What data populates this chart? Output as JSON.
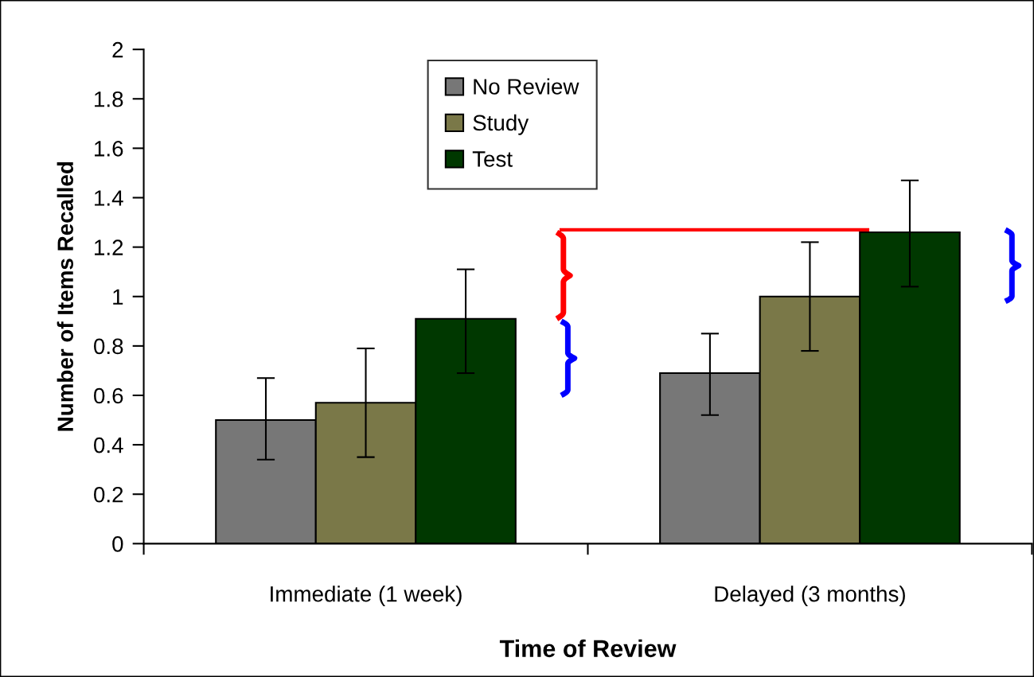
{
  "chart_data": {
    "type": "bar",
    "xlabel": "Time of Review",
    "ylabel": "Number of Items Recalled",
    "categories": [
      "Immediate (1 week)",
      "Delayed (3 months)"
    ],
    "series": [
      {
        "name": "No Review",
        "color": "#777777",
        "values": [
          0.5,
          0.69
        ],
        "errors": [
          [
            0.34,
            0.67
          ],
          [
            0.52,
            0.85
          ]
        ]
      },
      {
        "name": "Study",
        "color": "#7a7848",
        "values": [
          0.57,
          1.0
        ],
        "errors": [
          [
            0.35,
            0.79
          ],
          [
            0.78,
            1.22
          ]
        ]
      },
      {
        "name": "Test",
        "color": "#003800",
        "values": [
          0.91,
          1.26
        ],
        "errors": [
          [
            0.69,
            1.11
          ],
          [
            1.04,
            1.47
          ]
        ]
      }
    ],
    "ylim": [
      0,
      2
    ],
    "yticks": [
      0,
      {
        "value": 0.2,
        "label": "0.2"
      },
      {
        "value": 0.4,
        "label": "0.4"
      },
      {
        "value": 0.6,
        "label": "0.6"
      },
      {
        "value": 0.8,
        "label": "0.8"
      },
      1,
      {
        "value": 1.2,
        "label": "1.2"
      },
      {
        "value": 1.4,
        "label": "1.4"
      },
      {
        "value": 1.6,
        "label": "1.6"
      },
      {
        "value": 1.8,
        "label": "1.8"
      },
      2
    ],
    "grid": false,
    "legend": "top"
  }
}
